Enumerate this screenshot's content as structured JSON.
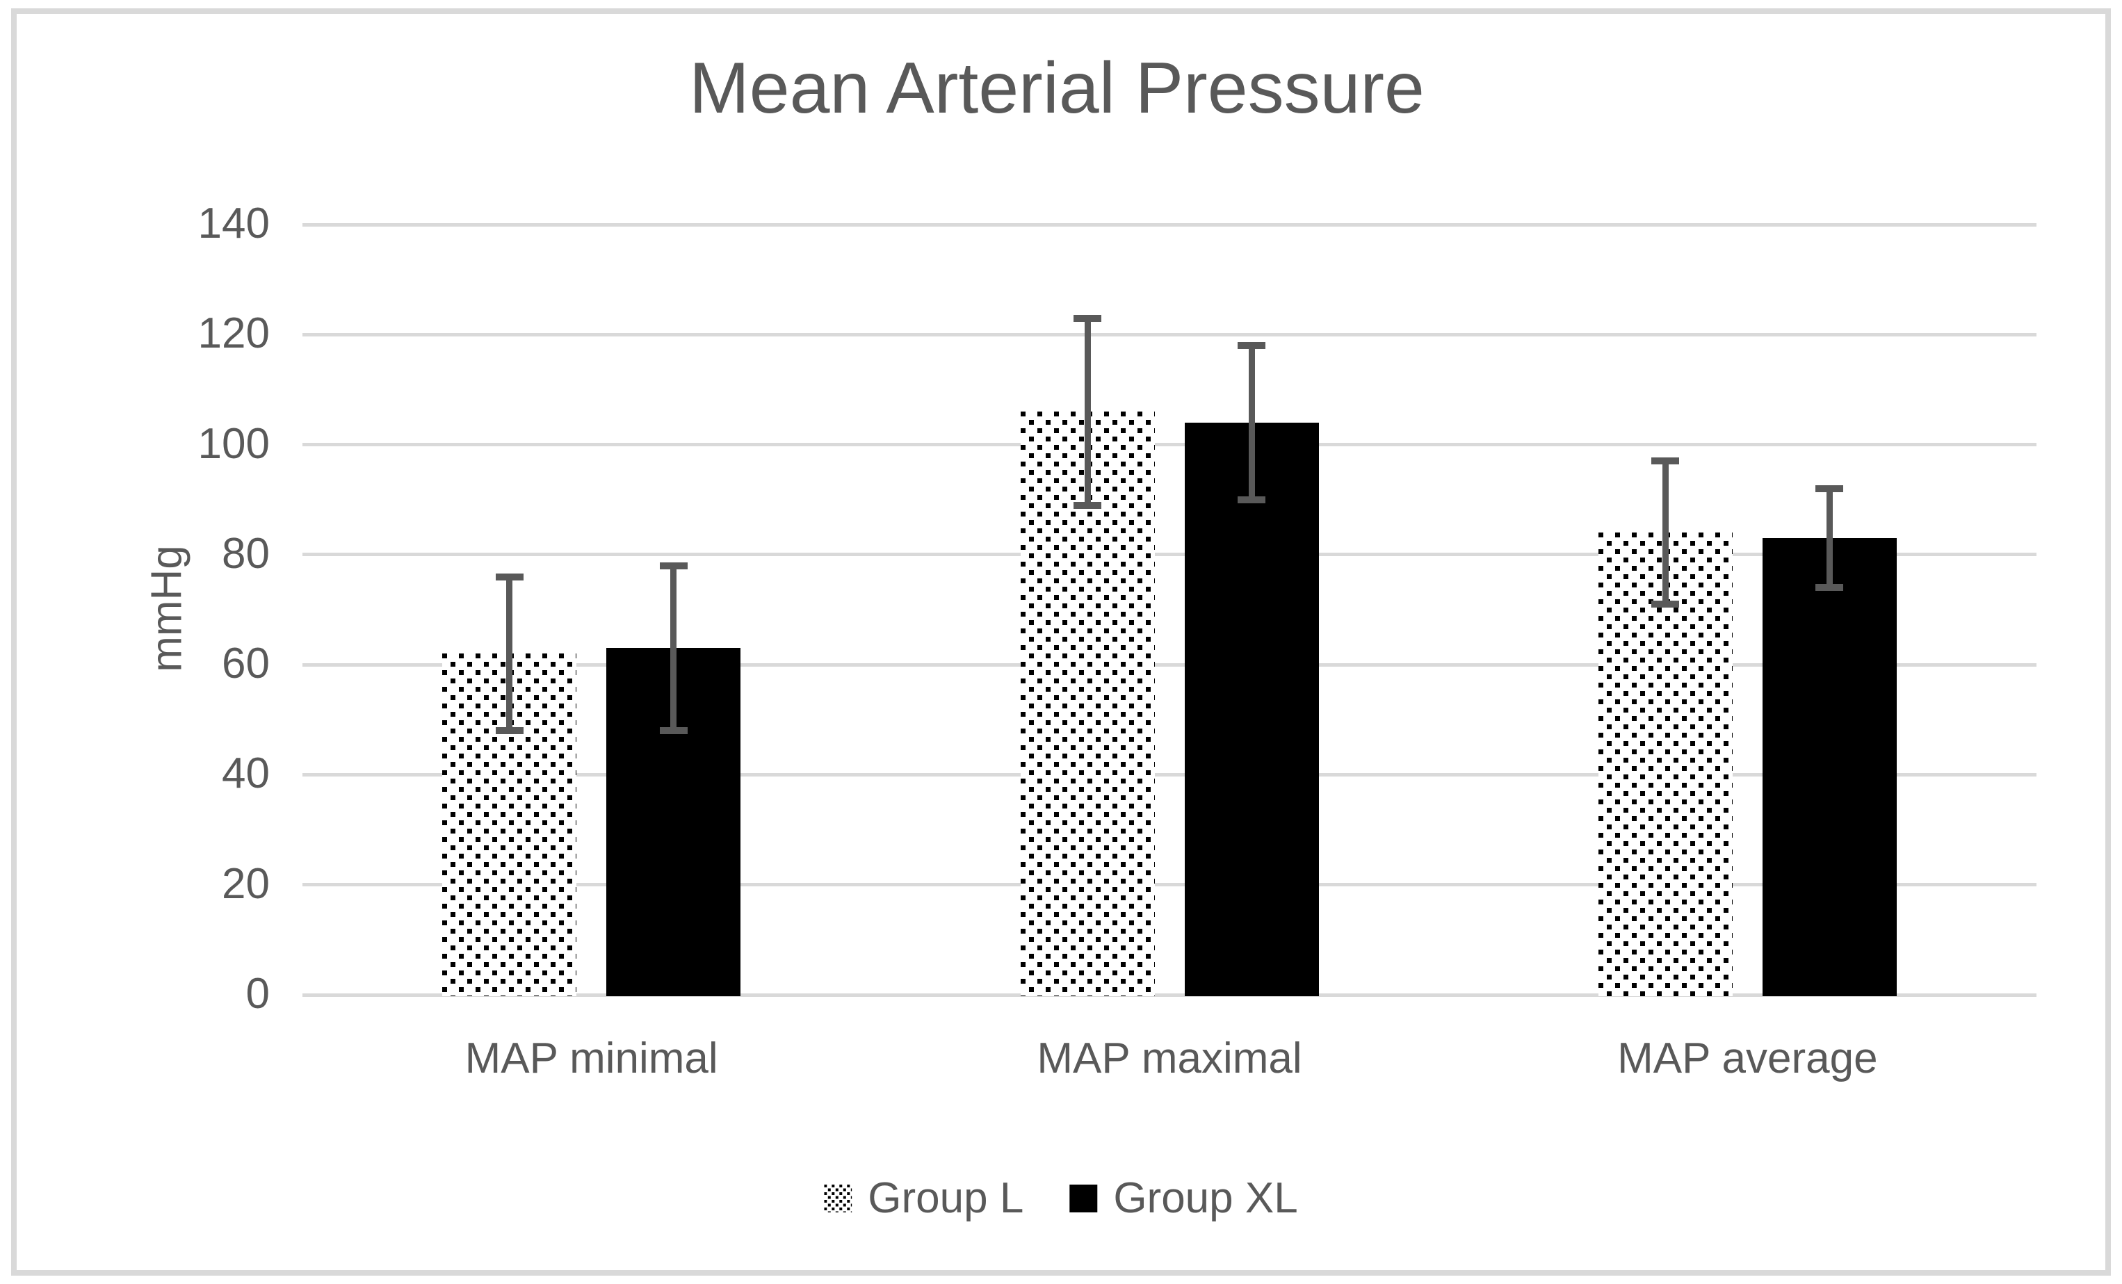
{
  "figure": {
    "title": "Mean Arterial Pressure"
  },
  "chart_data": {
    "type": "bar",
    "title": "Mean Arterial Pressure",
    "categories": [
      "MAP minimal",
      "MAP maximal",
      "MAP average"
    ],
    "series": [
      {
        "name": "Group L",
        "style": "dotted-white",
        "values": [
          62,
          106,
          84
        ],
        "error": [
          14,
          17,
          13
        ]
      },
      {
        "name": "Group XL",
        "style": "solid-black",
        "values": [
          63,
          104,
          83
        ],
        "error": [
          15,
          14,
          9
        ]
      }
    ],
    "xlabel": "",
    "ylabel": "mmHg",
    "ylim": [
      0,
      140
    ],
    "yticks": [
      0,
      20,
      40,
      60,
      80,
      100,
      120,
      140
    ],
    "grid": true,
    "error_bars": "symmetric",
    "legend_position": "bottom",
    "legend": [
      "Group L",
      "Group XL"
    ]
  },
  "colors": {
    "text": "#595959",
    "gridline": "#D9D9D9",
    "frame_border": "#D9D9D9",
    "bar_solid": "#000000",
    "bar_dotted_fill": "#FFFFFF",
    "bar_dotted_dot": "#000000",
    "error_bar": "#595959",
    "background": "#FFFFFF"
  }
}
